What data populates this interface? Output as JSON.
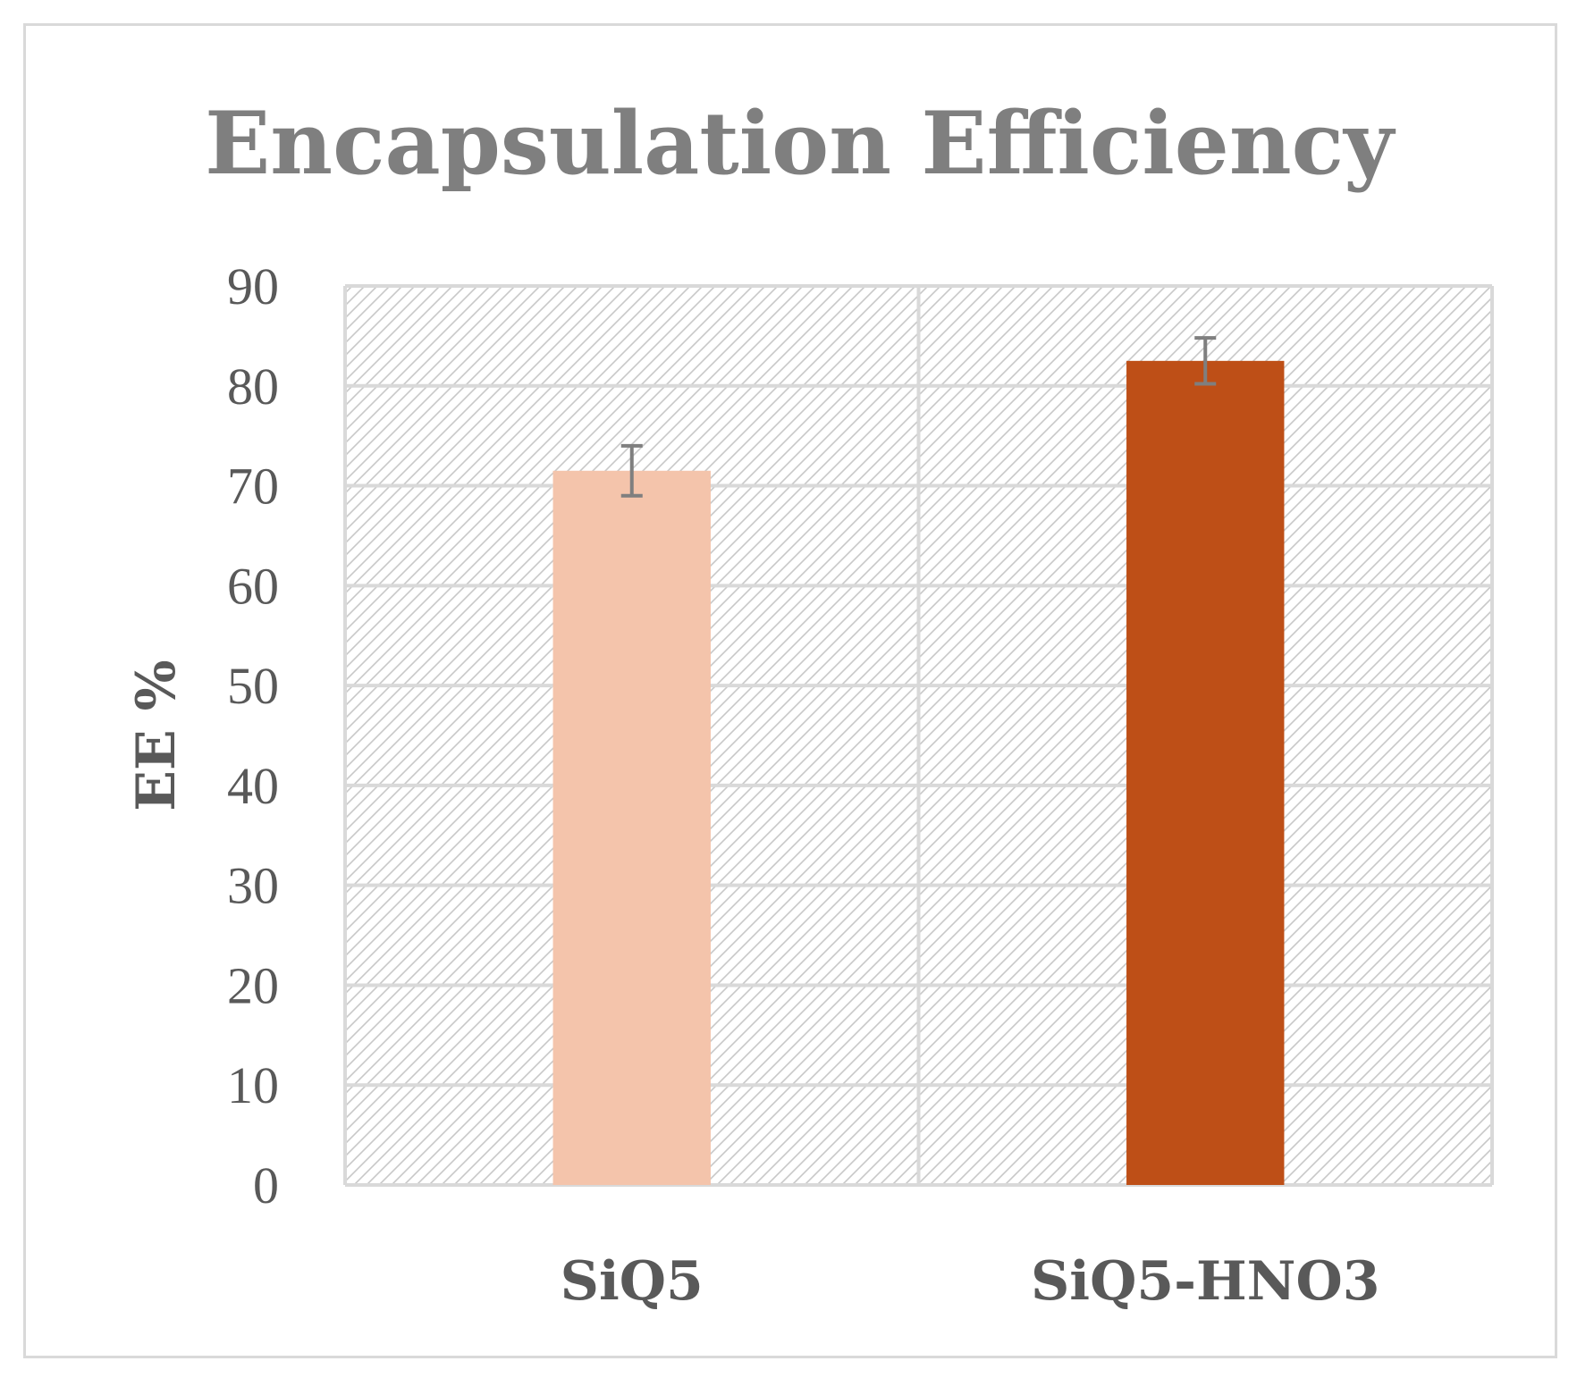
{
  "chart_data": {
    "type": "bar",
    "title": "Encapsulation Efficiency",
    "xlabel": "",
    "ylabel": "EE %",
    "categories": [
      "SiQ5",
      "SiQ5-HNO3"
    ],
    "values": [
      71.5,
      82.5
    ],
    "errors": [
      2.5,
      2.3
    ],
    "colors": [
      "#f4c4ab",
      "#be4f17"
    ],
    "ylim": [
      0,
      90
    ],
    "yticks": [
      0,
      10,
      20,
      30,
      40,
      50,
      60,
      70,
      80,
      90
    ],
    "grid": true,
    "legend": "none",
    "gridline_color": "#d9d9d9",
    "hatch_color": "#c8c8c8",
    "error_bar_color": "#7f7f7f"
  }
}
